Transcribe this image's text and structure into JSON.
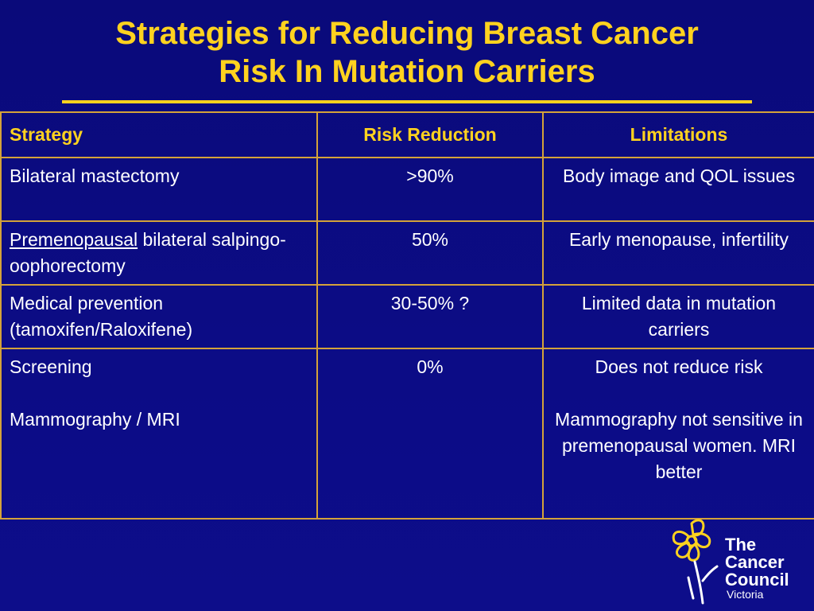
{
  "title": {
    "line1": "Strategies for Reducing Breast Cancer",
    "line2": "Risk In Mutation Carriers"
  },
  "table": {
    "headers": [
      "Strategy",
      "Risk Reduction",
      "Limitations"
    ],
    "rows": [
      {
        "strategy": [
          "Bilateral mastectomy"
        ],
        "risk": ">90%",
        "limitations": [
          "Body image and QOL issues"
        ]
      },
      {
        "strategy_underlined": "Premenopausal",
        "strategy_rest": " bilateral salpingo-oophorectomy",
        "risk": "50%",
        "limitations": [
          "Early menopause, infertility"
        ]
      },
      {
        "strategy": [
          "Medical prevention (tamoxifen/Raloxifene)"
        ],
        "risk": "30-50% ?",
        "limitations": [
          "Limited data in mutation carriers"
        ]
      },
      {
        "strategy": [
          "Screening",
          "Mammography / MRI"
        ],
        "risk": "0%",
        "limitations": [
          "Does not reduce risk",
          "Mammography not sensitive in premenopausal women. MRI better"
        ]
      }
    ]
  },
  "logo": {
    "line1": "The",
    "line2": "Cancer",
    "line3": "Council",
    "sub": "Victoria",
    "icon": "daffodil-icon"
  },
  "colors": {
    "background": "#0c0c86",
    "title": "#ffd21f",
    "border": "#d4a23a",
    "text": "#ffffff"
  }
}
